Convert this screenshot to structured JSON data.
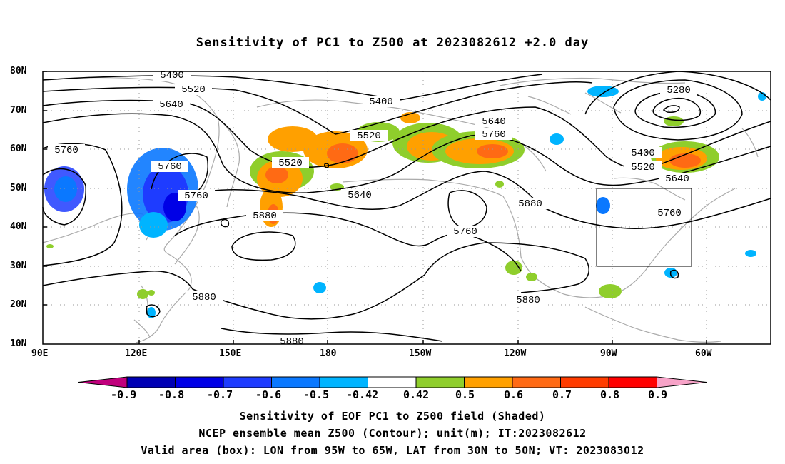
{
  "title": "Sensitivity of PC1 to Z500 at 2023082612 +2.0 day",
  "lat_labels": [
    "80N",
    "70N",
    "60N",
    "50N",
    "40N",
    "30N",
    "20N",
    "10N"
  ],
  "lon_labels": [
    "90E",
    "120E",
    "150E",
    "180",
    "150W",
    "120W",
    "90W",
    "60W"
  ],
  "contour_labels": [
    "5400",
    "5520",
    "5640",
    "5760",
    "5400",
    "5280",
    "5640",
    "5760",
    "5520",
    "5520",
    "5400",
    "5520",
    "5640",
    "5760",
    "5760",
    "5640",
    "5880",
    "5880",
    "5760",
    "5760",
    "5880",
    "5880",
    "5880"
  ],
  "colorbar": {
    "labels": [
      "-0.9",
      "-0.8",
      "-0.7",
      "-0.6",
      "-0.5",
      "-0.42",
      "0.42",
      "0.5",
      "0.6",
      "0.7",
      "0.8",
      "0.9"
    ],
    "colors": [
      "#c0007c",
      "#0000b4",
      "#0000e6",
      "#1e3cff",
      "#0a78ff",
      "#00b4ff",
      "#ffffff",
      "#8fce2c",
      "#ffa000",
      "#ff6a14",
      "#ff3c00",
      "#ff0000",
      "#f7a3c8"
    ]
  },
  "captions": [
    "Sensitivity of EOF PC1 to Z500 field (Shaded)",
    "NCEP ensemble mean Z500 (Contour); unit(m); IT:2023082612",
    "Valid area (box): LON from 95W to 65W, LAT from 30N to 50N; VT: 2023083012"
  ]
}
